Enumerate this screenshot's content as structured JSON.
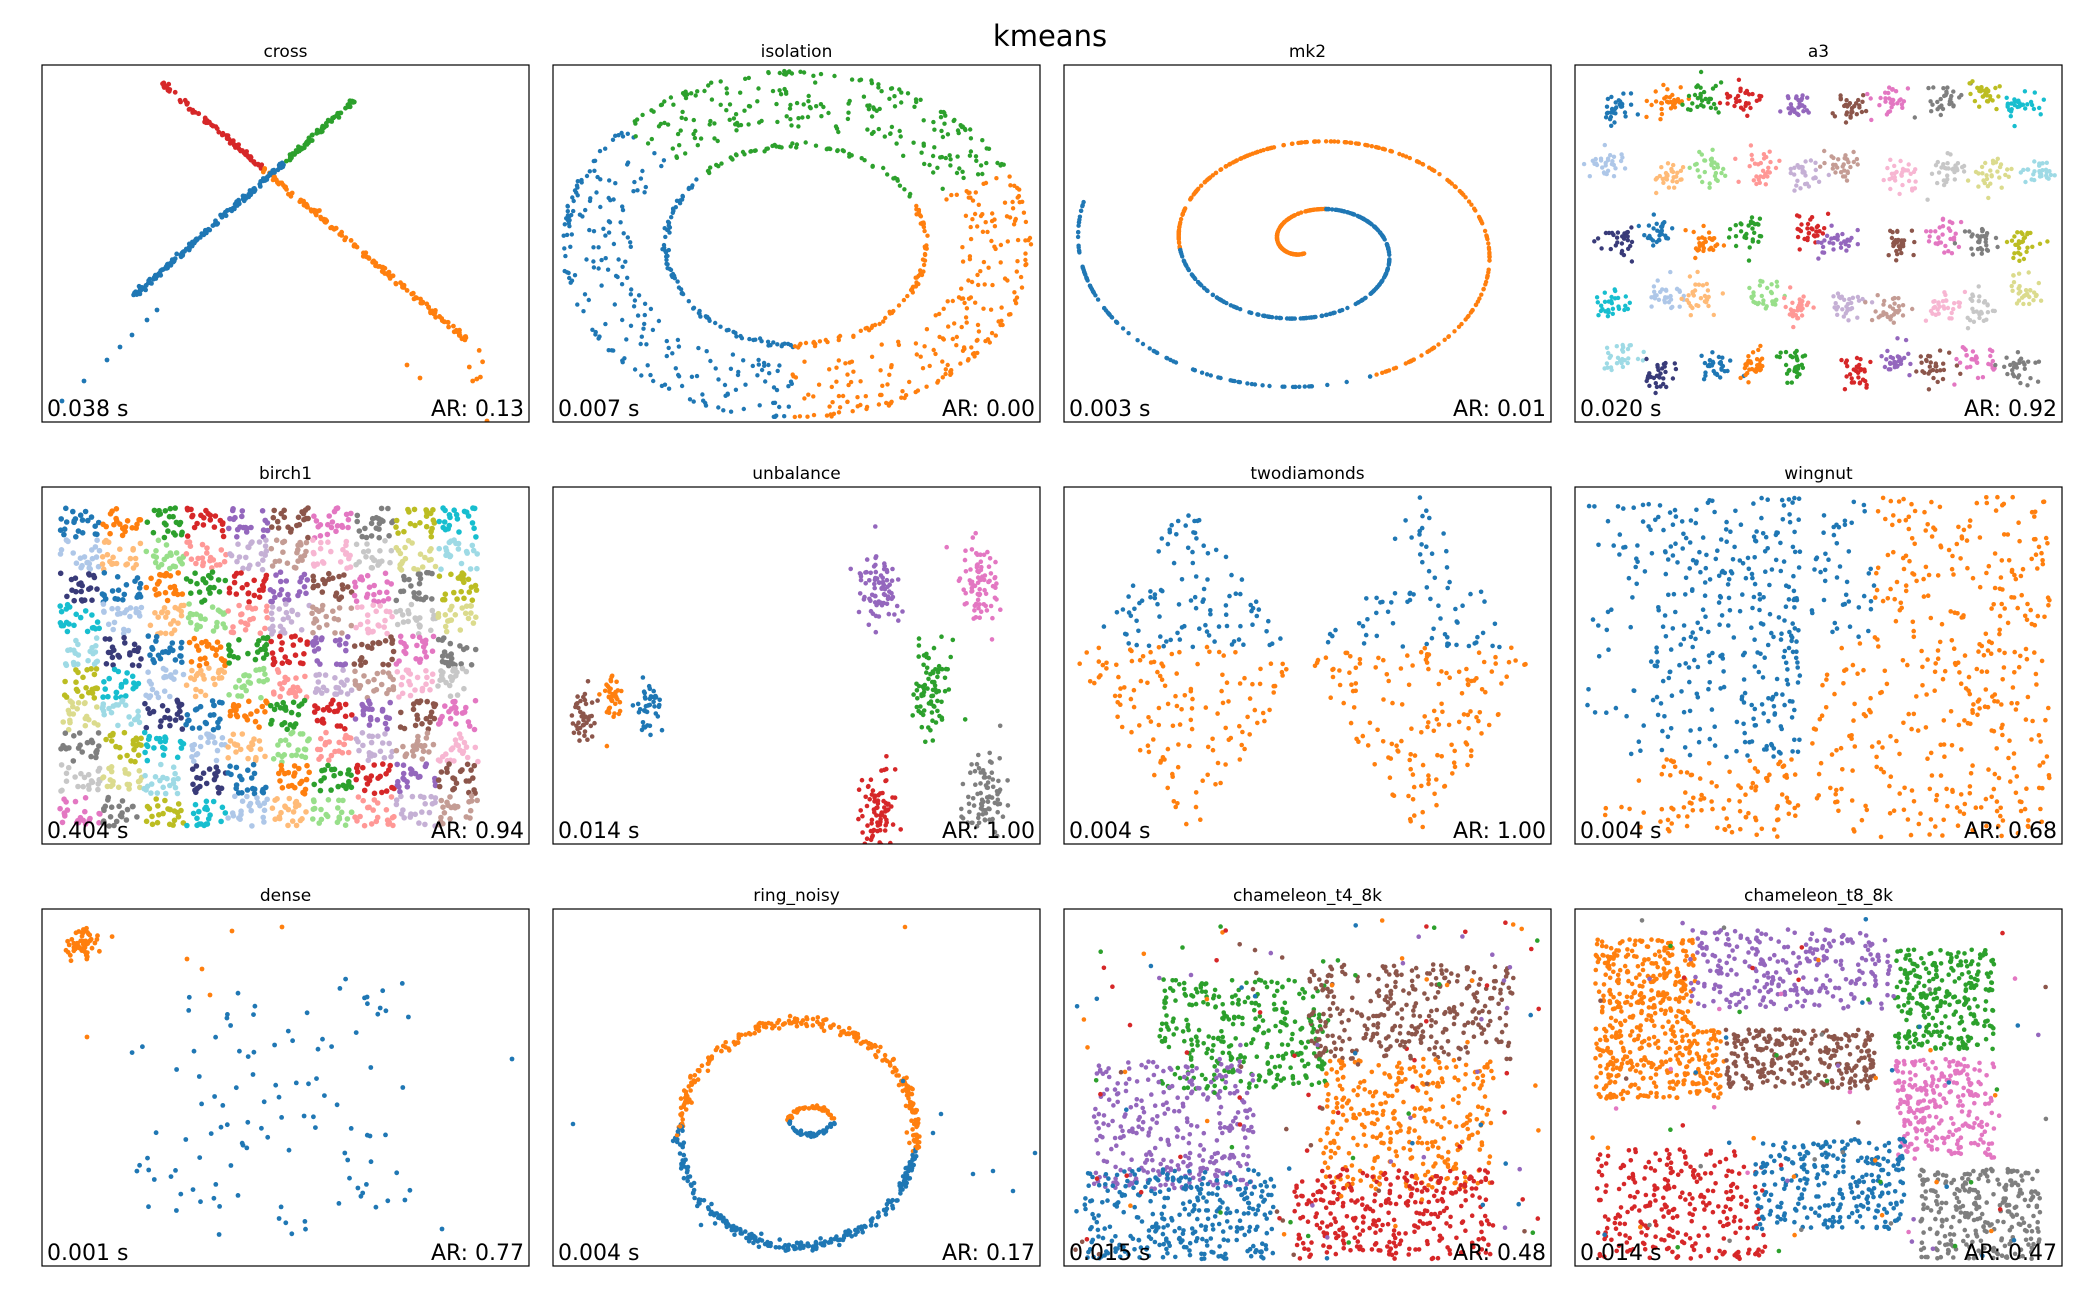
{
  "figure": {
    "suptitle": "kmeans"
  },
  "palette": [
    "#1f77b4",
    "#ff7f0e",
    "#2ca02c",
    "#d62728",
    "#9467bd",
    "#8c564b",
    "#e377c2",
    "#7f7f7f",
    "#bcbd22",
    "#17becf",
    "#aec7e8",
    "#ffbb78",
    "#98df8a",
    "#ff9896",
    "#c5b0d5",
    "#c49c94",
    "#f7b6d2",
    "#c7c7c7",
    "#dbdb8d",
    "#9edae5",
    "#393b79"
  ],
  "chart_data": [
    {
      "type": "scatter",
      "title": "cross",
      "time": "0.038 s",
      "ar": "AR: 0.13",
      "clusters": 4
    },
    {
      "type": "scatter",
      "title": "isolation",
      "time": "0.007 s",
      "ar": "AR: 0.00",
      "clusters": 3
    },
    {
      "type": "scatter",
      "title": "mk2",
      "time": "0.003 s",
      "ar": "AR: 0.01",
      "clusters": 2
    },
    {
      "type": "scatter",
      "title": "a3",
      "time": "0.020 s",
      "ar": "AR: 0.92",
      "clusters": 50
    },
    {
      "type": "scatter",
      "title": "birch1",
      "time": "0.404 s",
      "ar": "AR: 0.94",
      "clusters": 100
    },
    {
      "type": "scatter",
      "title": "unbalance",
      "time": "0.014 s",
      "ar": "AR: 1.00",
      "clusters": 8
    },
    {
      "type": "scatter",
      "title": "twodiamonds",
      "time": "0.004 s",
      "ar": "AR: 1.00",
      "clusters": 2
    },
    {
      "type": "scatter",
      "title": "wingnut",
      "time": "0.004 s",
      "ar": "AR: 0.68",
      "clusters": 2
    },
    {
      "type": "scatter",
      "title": "dense",
      "time": "0.001 s",
      "ar": "AR: 0.77",
      "clusters": 2
    },
    {
      "type": "scatter",
      "title": "ring_noisy",
      "time": "0.004 s",
      "ar": "AR: 0.17",
      "clusters": 2
    },
    {
      "type": "scatter",
      "title": "chameleon_t4_8k",
      "time": "0.015 s",
      "ar": "AR: 0.48",
      "clusters": 6
    },
    {
      "type": "scatter",
      "title": "chameleon_t8_8k",
      "time": "0.014 s",
      "ar": "AR: 0.47",
      "clusters": 8
    }
  ]
}
